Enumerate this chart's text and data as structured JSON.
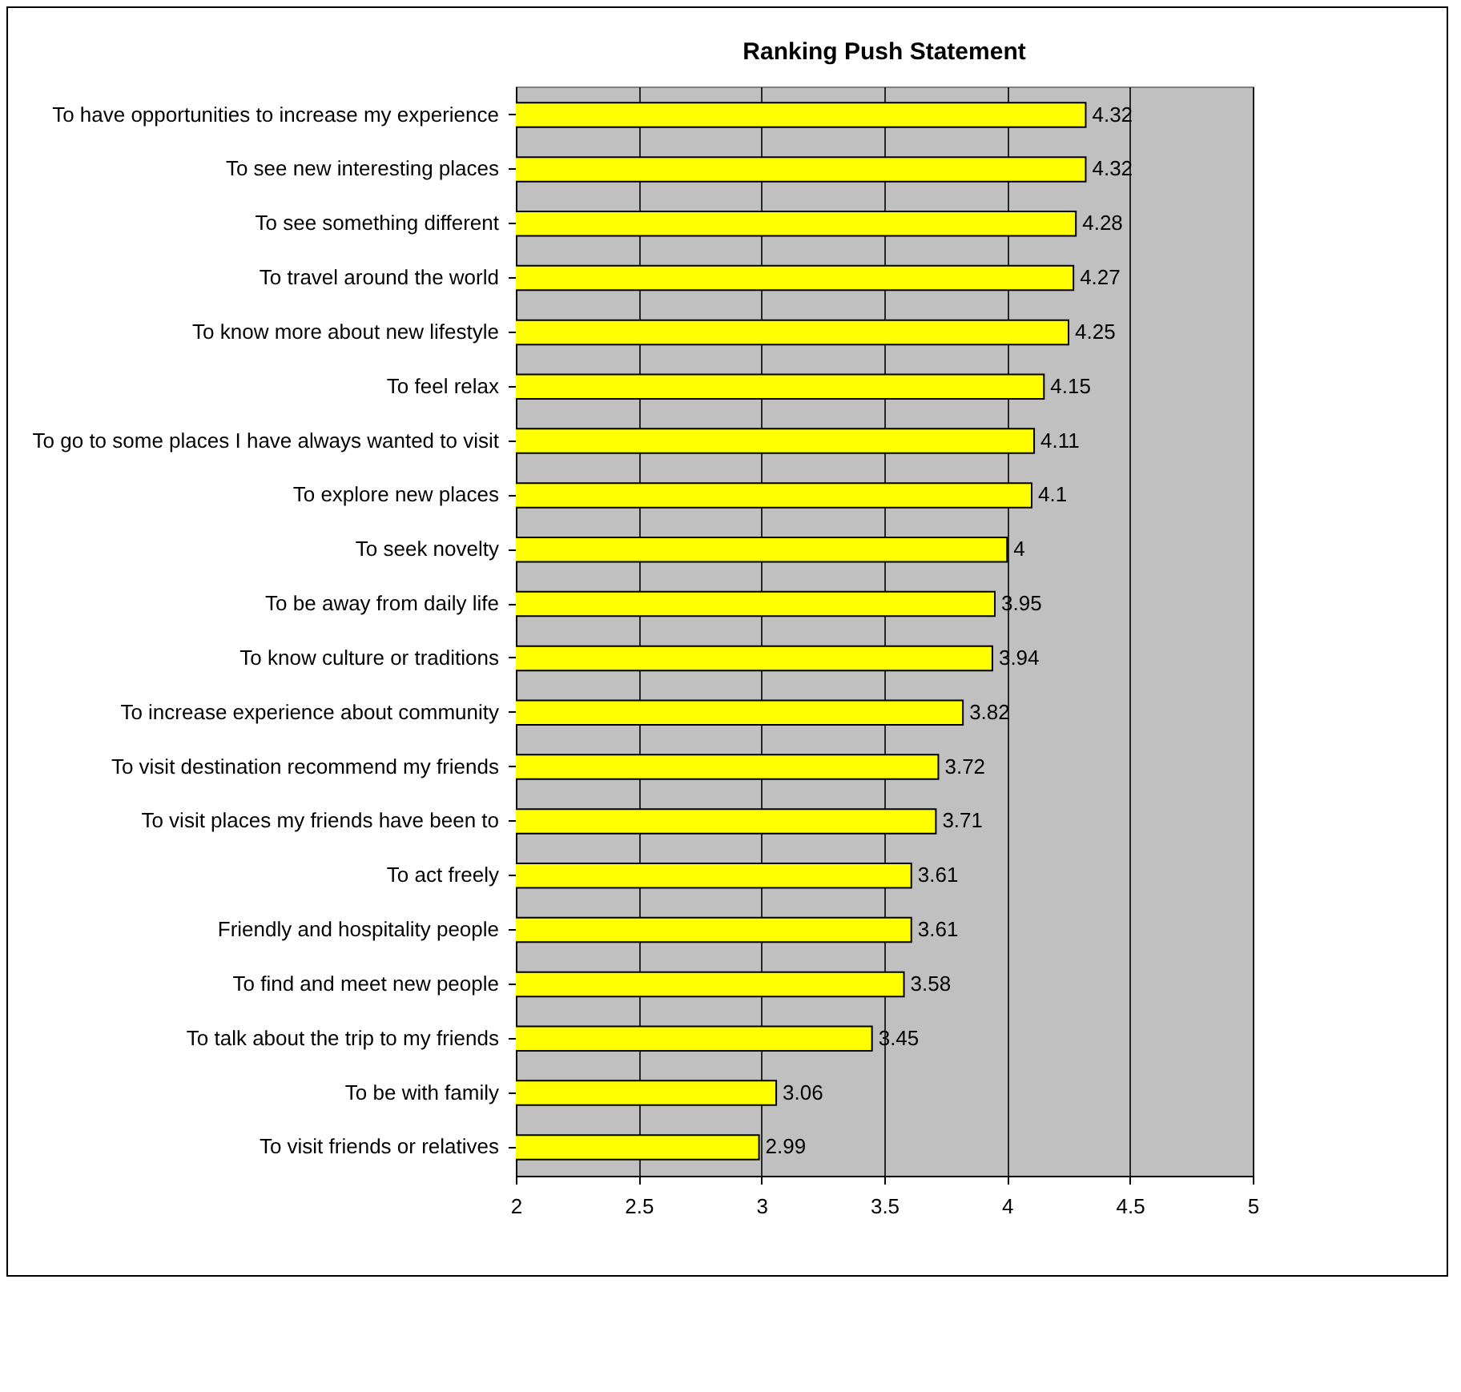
{
  "chart_data": {
    "type": "bar",
    "orientation": "horizontal",
    "title": "Ranking Push Statement",
    "categories": [
      "To have opportunities to increase my experience",
      "To see new interesting places",
      "To see something different",
      "To travel around the world",
      "To know more about new lifestyle",
      "To feel relax",
      "To go to some places I have always wanted to visit",
      "To explore new places",
      "To seek novelty",
      "To be away from daily life",
      "To know culture or traditions",
      "To increase experience about community",
      "To visit destination recommend my friends",
      "To visit places my friends have been to",
      "To act freely",
      "Friendly and hospitality people",
      "To find and meet new people",
      "To talk about the trip to my friends",
      "To be with family",
      "To visit friends or relatives"
    ],
    "values": [
      4.32,
      4.32,
      4.28,
      4.27,
      4.25,
      4.15,
      4.11,
      4.1,
      4,
      3.95,
      3.94,
      3.82,
      3.72,
      3.71,
      3.61,
      3.61,
      3.58,
      3.45,
      3.06,
      2.99
    ],
    "color": "#ffff00",
    "xlim": [
      2,
      5
    ],
    "xticks": [
      2,
      2.5,
      3,
      3.5,
      4,
      4.5,
      5
    ],
    "grid": "x",
    "data_labels": true
  }
}
